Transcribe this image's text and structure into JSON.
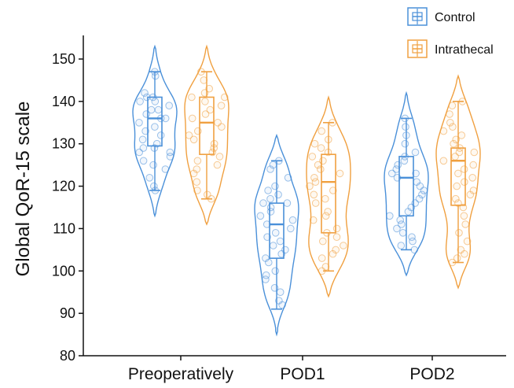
{
  "chart_data": {
    "type": "violin",
    "title": "",
    "xlabel": "",
    "ylabel": "Global QoR-15 scale",
    "ylim": [
      80,
      153
    ],
    "yticks": [
      80,
      90,
      100,
      110,
      120,
      130,
      140,
      150
    ],
    "categories": [
      "Preoperatively",
      "POD1",
      "POD2"
    ],
    "legend_position": "top-right",
    "grid": false,
    "series": [
      {
        "name": "Control",
        "color": "#4a90d9",
        "groups": [
          {
            "category": "Preoperatively",
            "min": 113,
            "max": 153,
            "box": {
              "q1": 129.5,
              "median": 136,
              "q3": 141,
              "whisker_low": 119,
              "whisker_high": 147
            },
            "points": [
              147,
              146,
              142,
              141,
              141,
              140,
              140,
              139,
              138,
              138,
              137,
              136,
              136,
              135,
              134,
              133,
              132,
              131,
              130,
              129,
              129,
              128,
              128,
              127,
              126,
              125,
              124,
              122,
              120,
              119
            ]
          },
          {
            "category": "POD1",
            "min": 85,
            "max": 132,
            "box": {
              "q1": 103,
              "median": 111,
              "q3": 116,
              "whisker_low": 91,
              "whisker_high": 126
            },
            "points": [
              126,
              125,
              124,
              122,
              120,
              119,
              118,
              117,
              116,
              116,
              115,
              114,
              113,
              112,
              111,
              110,
              109,
              108,
              107,
              106,
              105,
              104,
              103,
              102,
              100,
              99,
              98,
              96,
              95,
              93,
              92
            ]
          },
          {
            "category": "POD2",
            "min": 99,
            "max": 142,
            "box": {
              "q1": 113,
              "median": 122,
              "q3": 127,
              "whisker_low": 105,
              "whisker_high": 136
            },
            "points": [
              136,
              134,
              132,
              130,
              128,
              127,
              126,
              125,
              124,
              123,
              123,
              122,
              121,
              120,
              119,
              118,
              117,
              116,
              115,
              114,
              113,
              112,
              111,
              110,
              109,
              108,
              107,
              106,
              105
            ]
          }
        ]
      },
      {
        "name": "Intrathecal",
        "color": "#f0a040",
        "groups": [
          {
            "category": "Preoperatively",
            "min": 111,
            "max": 153,
            "box": {
              "q1": 127.5,
              "median": 135,
              "q3": 141,
              "whisker_low": 117,
              "whisker_high": 147
            },
            "points": [
              147,
              145,
              143,
              142,
              141,
              141,
              140,
              139,
              138,
              137,
              136,
              135,
              134,
              133,
              132,
              131,
              130,
              129,
              128,
              127,
              126,
              125,
              124,
              123,
              121,
              119,
              118,
              117
            ]
          },
          {
            "category": "POD1",
            "min": 94,
            "max": 141,
            "box": {
              "q1": 109,
              "median": 121,
              "q3": 127.5,
              "whisker_low": 100,
              "whisker_high": 135
            },
            "points": [
              135,
              133,
              131,
              130,
              129,
              128,
              127,
              126,
              125,
              124,
              123,
              122,
              121,
              120,
              119,
              118,
              117,
              116,
              114,
              113,
              112,
              110,
              109,
              108,
              107,
              106,
              105,
              104,
              103,
              101,
              100
            ]
          },
          {
            "category": "POD2",
            "min": 96,
            "max": 146,
            "box": {
              "q1": 115.5,
              "median": 126,
              "q3": 129,
              "whisker_low": 102,
              "whisker_high": 140
            },
            "points": [
              140,
              139,
              137,
              135,
              134,
              133,
              132,
              131,
              130,
              129,
              128,
              128,
              127,
              126,
              125,
              124,
              123,
              122,
              121,
              120,
              119,
              118,
              117,
              116,
              115,
              113,
              111,
              109,
              107,
              105,
              104,
              103,
              102
            ]
          }
        ]
      }
    ]
  }
}
